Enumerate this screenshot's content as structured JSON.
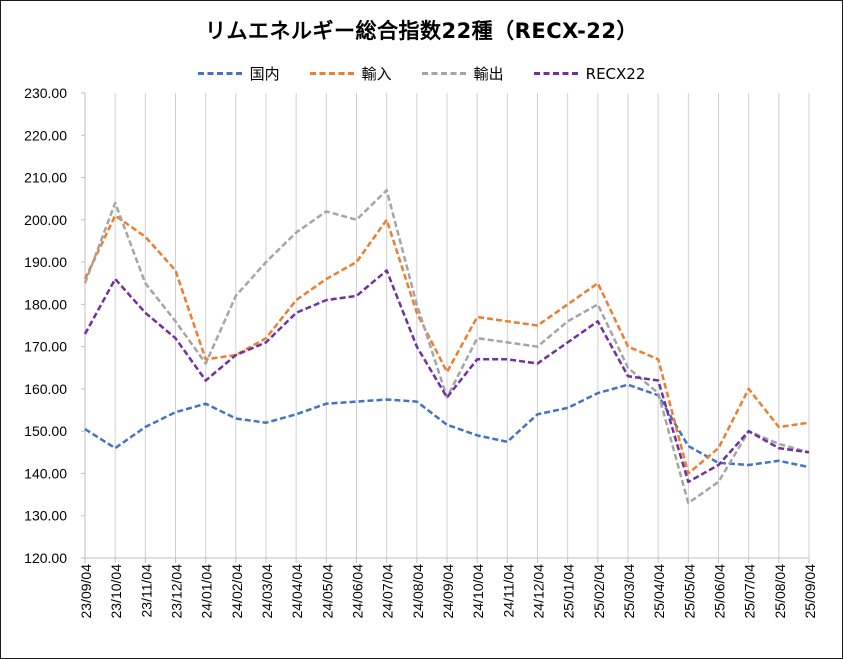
{
  "chart_data": {
    "type": "line",
    "title": "リムエネルギー総合指数22種（RECX-22）",
    "xlabel": "",
    "ylabel": "",
    "ylim": [
      120,
      230
    ],
    "y_ticks": [
      "120.00",
      "130.00",
      "140.00",
      "150.00",
      "160.00",
      "170.00",
      "180.00",
      "190.00",
      "200.00",
      "210.00",
      "220.00",
      "230.00"
    ],
    "categories": [
      "23/09/04",
      "23/10/04",
      "23/11/04",
      "23/12/04",
      "24/01/04",
      "24/02/04",
      "24/03/04",
      "24/04/04",
      "24/05/04",
      "24/06/04",
      "24/07/04",
      "24/08/04",
      "24/09/04",
      "24/10/04",
      "24/11/04",
      "24/12/04",
      "25/01/04",
      "25/02/04",
      "25/03/04",
      "25/04/04",
      "25/05/04",
      "25/06/04",
      "25/07/04",
      "25/08/04",
      "25/09/04"
    ],
    "grid": "vertical-gray",
    "legend_position": "top",
    "series": [
      {
        "name": "国内",
        "color": "#4472C4",
        "values": [
          150.5,
          146.0,
          151.0,
          154.5,
          156.5,
          153.0,
          152.0,
          154.0,
          156.5,
          157.0,
          157.5,
          157.0,
          151.5,
          149.0,
          147.5,
          154.0,
          155.5,
          159.0,
          161.0,
          158.5,
          146.5,
          142.5,
          142.0,
          143.0,
          141.5
        ]
      },
      {
        "name": "輸入",
        "color": "#ED7D31",
        "values": [
          186.0,
          201.0,
          196.0,
          188.0,
          167.0,
          168.0,
          172.0,
          181.0,
          186.0,
          190.0,
          200.0,
          178.0,
          164.0,
          177.0,
          176.0,
          175.0,
          180.0,
          185.0,
          170.0,
          167.0,
          140.0,
          146.0,
          160.0,
          151.0,
          152.0
        ]
      },
      {
        "name": "輸出",
        "color": "#A5A5A5",
        "values": [
          185.0,
          204.0,
          185.0,
          176.0,
          166.0,
          182.0,
          190.0,
          197.0,
          202.0,
          200.0,
          207.0,
          180.0,
          158.0,
          172.0,
          171.0,
          170.0,
          176.0,
          180.0,
          165.0,
          159.0,
          133.0,
          138.0,
          150.0,
          147.0,
          145.0
        ]
      },
      {
        "name": "RECX22",
        "color": "#7030A0",
        "values": [
          173.0,
          186.0,
          178.0,
          172.0,
          162.0,
          168.0,
          171.0,
          178.0,
          181.0,
          182.0,
          188.0,
          170.0,
          158.0,
          167.0,
          167.0,
          166.0,
          171.0,
          176.0,
          163.0,
          162.0,
          138.0,
          142.0,
          150.0,
          146.0,
          145.0
        ]
      }
    ]
  }
}
